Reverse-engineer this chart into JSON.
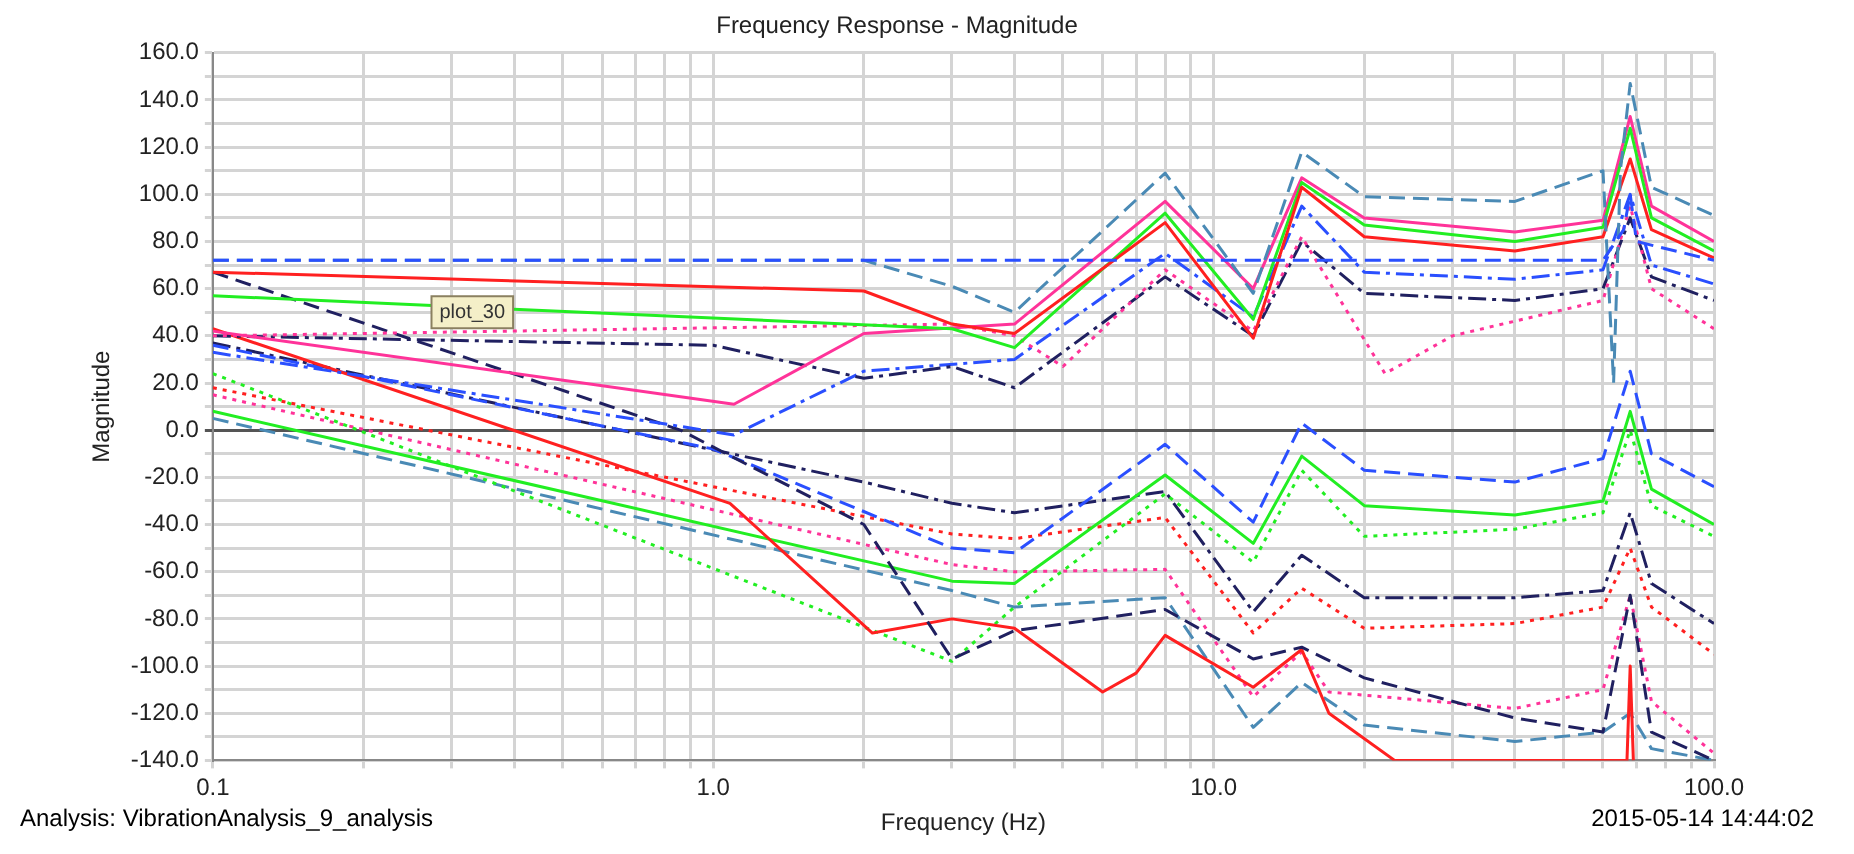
{
  "chart_data": {
    "type": "line",
    "title": "Frequency Response - Magnitude",
    "xlabel": "Frequency (Hz)",
    "ylabel": "Magnitude",
    "log": "x",
    "grid": true,
    "legend": false,
    "marker": "none",
    "xlim": [
      0.1,
      100
    ],
    "ylim": [
      -140,
      160
    ],
    "xticks": [
      {
        "value": 0.1,
        "label": "0.1"
      },
      {
        "value": 0.2,
        "label": null
      },
      {
        "value": 0.3,
        "label": null
      },
      {
        "value": 0.4,
        "label": null
      },
      {
        "value": 0.5,
        "label": null
      },
      {
        "value": 0.6,
        "label": null
      },
      {
        "value": 0.7,
        "label": null
      },
      {
        "value": 0.8,
        "label": null
      },
      {
        "value": 0.9,
        "label": null
      },
      {
        "value": 1,
        "label": "1.0"
      },
      {
        "value": 2,
        "label": null
      },
      {
        "value": 3,
        "label": null
      },
      {
        "value": 4,
        "label": null
      },
      {
        "value": 5,
        "label": null
      },
      {
        "value": 6,
        "label": null
      },
      {
        "value": 7,
        "label": null
      },
      {
        "value": 8,
        "label": null
      },
      {
        "value": 9,
        "label": null
      },
      {
        "value": 10,
        "label": "10.0"
      },
      {
        "value": 20,
        "label": null
      },
      {
        "value": 30,
        "label": null
      },
      {
        "value": 40,
        "label": null
      },
      {
        "value": 50,
        "label": null
      },
      {
        "value": 60,
        "label": null
      },
      {
        "value": 70,
        "label": null
      },
      {
        "value": 80,
        "label": null
      },
      {
        "value": 90,
        "label": null
      },
      {
        "value": 100,
        "label": "100.0"
      }
    ],
    "yticks": [
      {
        "value": -140,
        "label": "-140.0"
      },
      {
        "value": -130,
        "label": null
      },
      {
        "value": -120,
        "label": "-120.0"
      },
      {
        "value": -110,
        "label": null
      },
      {
        "value": -100,
        "label": "-100.0"
      },
      {
        "value": -90,
        "label": null
      },
      {
        "value": -80,
        "label": "-80.0"
      },
      {
        "value": -70,
        "label": null
      },
      {
        "value": -60,
        "label": "-60.0"
      },
      {
        "value": -50,
        "label": null
      },
      {
        "value": -40,
        "label": "-40.0"
      },
      {
        "value": -30,
        "label": null
      },
      {
        "value": -20,
        "label": "-20.0"
      },
      {
        "value": -10,
        "label": null
      },
      {
        "value": 0,
        "label": "0.0"
      },
      {
        "value": 10,
        "label": null
      },
      {
        "value": 20,
        "label": "20.0"
      },
      {
        "value": 30,
        "label": null
      },
      {
        "value": 40,
        "label": "40.0"
      },
      {
        "value": 50,
        "label": null
      },
      {
        "value": 60,
        "label": "60.0"
      },
      {
        "value": 70,
        "label": null
      },
      {
        "value": 80,
        "label": "80.0"
      },
      {
        "value": 90,
        "label": null
      },
      {
        "value": 100,
        "label": "100.0"
      },
      {
        "value": 110,
        "label": null
      },
      {
        "value": 120,
        "label": "120.0"
      },
      {
        "value": 130,
        "label": null
      },
      {
        "value": 140,
        "label": "140.0"
      },
      {
        "value": 150,
        "label": null
      },
      {
        "value": 160,
        "label": "160.0"
      }
    ],
    "annotations": [
      {
        "text": "plot_30",
        "x": 0.33,
        "y": 50
      },
      "Analysis:  VibrationAnalysis_9_analysis",
      "2015-05-14 14:44:02"
    ],
    "series": [
      {
        "color": "#2a4fff",
        "line_style": "dashed",
        "x": [
          0.1,
          1,
          10,
          60,
          66,
          68,
          70,
          100
        ],
        "values": [
          72,
          72,
          72,
          72,
          85,
          100,
          80,
          72
        ]
      },
      {
        "color": "#4a8ab5",
        "line_style": "dashed",
        "x": [
          0.1,
          2,
          3,
          4,
          8,
          12,
          15,
          20,
          40,
          60,
          63,
          65,
          68,
          75,
          100
        ],
        "values": [
          72,
          72,
          61,
          50,
          109,
          58,
          118,
          99,
          97,
          110,
          20,
          110,
          147,
          103,
          91
        ]
      },
      {
        "color": "#ff2020",
        "line_style": "solid",
        "x": [
          0.1,
          2,
          3,
          4,
          8,
          12,
          15,
          20,
          40,
          60,
          68,
          75,
          100
        ],
        "values": [
          67,
          59,
          45,
          41,
          88,
          39,
          103,
          82,
          76,
          82,
          115,
          85,
          73
        ]
      },
      {
        "color": "#22ee22",
        "line_style": "solid",
        "x": [
          0.1,
          3,
          4,
          8,
          12,
          15,
          20,
          40,
          60,
          68,
          75,
          100
        ],
        "values": [
          57,
          43,
          35,
          92,
          47,
          105,
          87,
          80,
          86,
          128,
          90,
          76
        ]
      },
      {
        "color": "#ff3399",
        "line_style": "solid",
        "x": [
          0.1,
          1.1,
          2,
          4,
          8,
          12,
          15,
          20,
          40,
          60,
          68,
          75,
          100
        ],
        "values": [
          42,
          11,
          41,
          45,
          97,
          60,
          107,
          90,
          84,
          89,
          133,
          95,
          80
        ]
      },
      {
        "color": "#ff3399",
        "line_style": "dotted",
        "x": [
          0.1,
          3,
          4,
          5,
          8,
          12,
          15,
          22,
          30,
          60,
          68,
          75,
          100
        ],
        "values": [
          40,
          45,
          40,
          27,
          68,
          42,
          82,
          24,
          40,
          55,
          95,
          60,
          43
        ]
      },
      {
        "color": "#202060",
        "line_style": "dashdot",
        "x": [
          0.1,
          1,
          2,
          3,
          4,
          8,
          12,
          15,
          20,
          40,
          60,
          68,
          75,
          100
        ],
        "values": [
          40,
          36,
          22,
          27,
          18,
          65,
          40,
          80,
          58,
          55,
          60,
          90,
          65,
          55
        ]
      },
      {
        "color": "#2a4fff",
        "line_style": "dashdot",
        "x": [
          0.1,
          1.1,
          2,
          4,
          8,
          12,
          15,
          20,
          40,
          60,
          68,
          75,
          100
        ],
        "values": [
          33,
          -2,
          25,
          30,
          75,
          48,
          95,
          67,
          64,
          68,
          100,
          70,
          62
        ]
      },
      {
        "color": "#202060",
        "line_style": "dashed",
        "x": [
          0.1,
          0.86,
          2,
          3,
          4,
          8,
          12,
          15,
          20,
          40,
          60,
          68,
          75,
          100
        ],
        "values": [
          67,
          0,
          -40,
          -97,
          -85,
          -76,
          -97,
          -92,
          -105,
          -122,
          -128,
          -70,
          -128,
          -140
        ]
      },
      {
        "color": "#ff2020",
        "line_style": "solid",
        "x": [
          0.1,
          1.08,
          2.08,
          3,
          4,
          6,
          7,
          8,
          12,
          15,
          17,
          23,
          67,
          68,
          69
        ],
        "values": [
          43,
          -31,
          -86,
          -80,
          -84,
          -111,
          -103,
          -87,
          -109,
          -93,
          -120,
          -140,
          -140,
          -100,
          -140
        ]
      },
      {
        "color": "#22ee22",
        "line_style": "solid",
        "x": [
          0.1,
          3,
          4,
          8,
          12,
          15,
          20,
          40,
          60,
          68,
          75,
          100
        ],
        "values": [
          8,
          -64,
          -65,
          -19,
          -48,
          -11,
          -32,
          -36,
          -30,
          8,
          -25,
          -40
        ]
      },
      {
        "color": "#22ee22",
        "line_style": "dotted",
        "x": [
          0.1,
          3,
          4,
          8,
          12,
          15,
          20,
          40,
          60,
          68,
          75,
          100
        ],
        "values": [
          24,
          -98,
          -75,
          -27,
          -56,
          -17,
          -45,
          -42,
          -35,
          0,
          -32,
          -45
        ]
      },
      {
        "color": "#2a4fff",
        "line_style": "dashed",
        "x": [
          0.1,
          1,
          3,
          4,
          8,
          12,
          15,
          20,
          40,
          60,
          68,
          75,
          100
        ],
        "values": [
          36,
          -8,
          -50,
          -52,
          -6,
          -39,
          3,
          -17,
          -22,
          -12,
          25,
          -10,
          -24
        ]
      },
      {
        "color": "#202060",
        "line_style": "dashdot",
        "x": [
          0.1,
          2,
          3,
          4,
          8,
          12,
          15,
          20,
          40,
          60,
          68,
          75,
          100
        ],
        "values": [
          37,
          -22,
          -31,
          -35,
          -26,
          -77,
          -53,
          -71,
          -71,
          -68,
          -35,
          -65,
          -82
        ]
      },
      {
        "color": "#ff2020",
        "line_style": "dotted",
        "x": [
          0.1,
          3,
          4,
          8,
          12,
          15,
          20,
          40,
          60,
          68,
          75,
          100
        ],
        "values": [
          18,
          -44,
          -46,
          -37,
          -86,
          -67,
          -84,
          -82,
          -75,
          -50,
          -75,
          -95
        ]
      },
      {
        "color": "#ff3399",
        "line_style": "dotted",
        "x": [
          0.1,
          3,
          4,
          8,
          12,
          15,
          17,
          40,
          60,
          68,
          75,
          100
        ],
        "values": [
          15,
          -57,
          -60,
          -59,
          -113,
          -94,
          -111,
          -118,
          -110,
          -70,
          -115,
          -137
        ]
      },
      {
        "color": "#4a8ab5",
        "line_style": "dashed",
        "x": [
          0.1,
          3,
          4,
          8,
          12,
          15,
          20,
          40,
          60,
          68,
          75,
          100
        ],
        "values": [
          5,
          -68,
          -75,
          -71,
          -126,
          -107,
          -125,
          -132,
          -128,
          -120,
          -135,
          -140
        ]
      }
    ]
  }
}
